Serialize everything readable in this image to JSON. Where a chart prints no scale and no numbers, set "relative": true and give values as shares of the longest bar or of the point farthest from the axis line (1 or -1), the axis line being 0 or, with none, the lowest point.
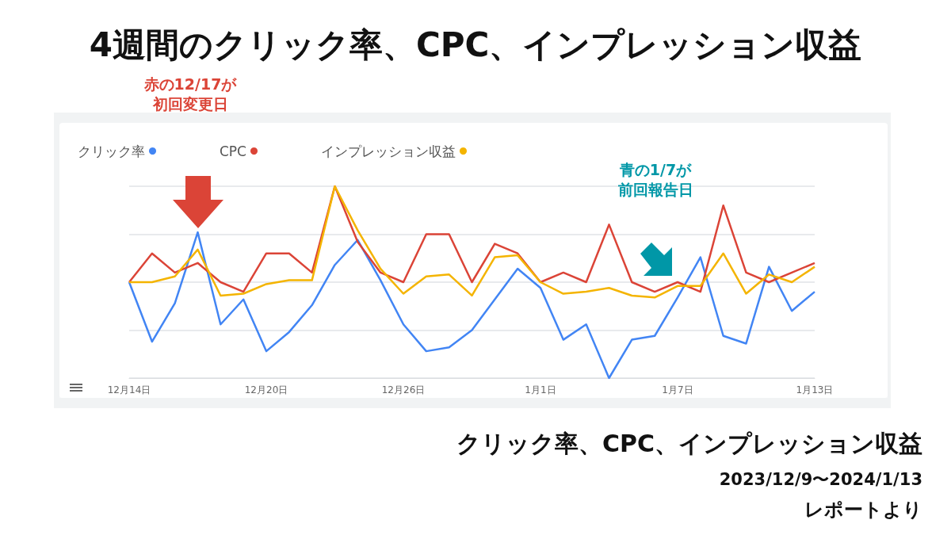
{
  "chart_data": {
    "type": "line",
    "title": "4週間のクリック率、CPC、インプレッション収益",
    "subtitle": "クリック率、CPC、インプレッション収益",
    "annotations": [
      "赤の12/17が初回変更日",
      "青の1/7が前回報告日",
      "2023/12/9〜2024/1/13",
      "レポートより"
    ],
    "categories": [
      "12月14日",
      null,
      null,
      null,
      null,
      null,
      "12月20日",
      null,
      null,
      null,
      null,
      null,
      "12月26日",
      null,
      null,
      null,
      null,
      null,
      "1月1日",
      null,
      null,
      null,
      null,
      null,
      "1月7日",
      null,
      null,
      null,
      null,
      null,
      "1月13日"
    ],
    "relative": true,
    "grid": "y",
    "legend": "top left",
    "marker": "none",
    "line_style": "solid",
    "series": [
      {
        "name": "クリック率",
        "color": "#4285f4",
        "values": [
          0.5,
          0.19,
          0.39,
          0.76,
          0.28,
          0.41,
          0.14,
          0.24,
          0.38,
          0.59,
          0.72,
          0.51,
          0.28,
          0.14,
          0.16,
          0.25,
          0.41,
          0.57,
          0.47,
          0.2,
          0.28,
          0,
          0.2,
          0.22,
          0.42,
          0.63,
          0.22,
          0.18,
          0.58,
          0.35,
          0.45
        ]
      },
      {
        "name": "CPC",
        "color": "#db4437",
        "values": [
          0.5,
          0.65,
          0.55,
          0.6,
          0.5,
          0.45,
          0.65,
          0.65,
          0.55,
          1,
          0.71,
          0.55,
          0.5,
          0.75,
          0.75,
          0.5,
          0.7,
          0.65,
          0.5,
          0.55,
          0.5,
          0.8,
          0.5,
          0.45,
          0.5,
          0.45,
          0.9,
          0.55,
          0.5,
          0.55,
          0.6
        ]
      },
      {
        "name": "インプレッション収益",
        "color": "#f4b400",
        "values": [
          0.5,
          0.5,
          0.53,
          0.67,
          0.43,
          0.44,
          0.49,
          0.51,
          0.51,
          1,
          0.77,
          0.57,
          0.44,
          0.53,
          0.54,
          0.43,
          0.63,
          0.64,
          0.5,
          0.44,
          0.45,
          0.47,
          0.43,
          0.42,
          0.48,
          0.48,
          0.65,
          0.44,
          0.54,
          0.5,
          0.58
        ]
      }
    ]
  }
}
